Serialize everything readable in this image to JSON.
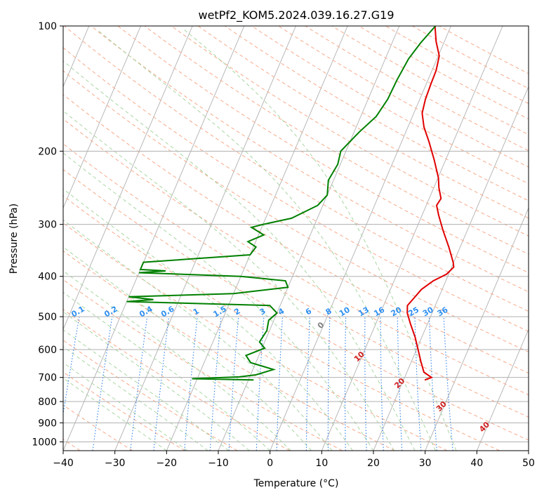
{
  "chart_data": {
    "type": "line",
    "title": "wetPf2_KOM5.2024.039.16.27.G19",
    "xlabel": "Temperature (°C)",
    "ylabel": "Pressure (hPa)",
    "xlim": [
      -40,
      50
    ],
    "ylim": [
      1050,
      100
    ],
    "y_scale": "log",
    "grid": true,
    "x_ticks": [
      -40,
      -30,
      -20,
      -10,
      0,
      10,
      20,
      30,
      40,
      50
    ],
    "y_ticks": [
      100,
      200,
      300,
      400,
      500,
      600,
      700,
      800,
      900,
      1000
    ],
    "series": [
      {
        "color": "#e00000",
        "points": [
          [
            24.1,
            710
          ],
          [
            25.2,
            700
          ],
          [
            23.3,
            680
          ],
          [
            21.8,
            640
          ],
          [
            20.3,
            600
          ],
          [
            18.7,
            560
          ],
          [
            16.7,
            520
          ],
          [
            15.2,
            490
          ],
          [
            14.6,
            470
          ],
          [
            15.3,
            450
          ],
          [
            16.0,
            430
          ],
          [
            17.6,
            410
          ],
          [
            19.6,
            395
          ],
          [
            20.4,
            380
          ],
          [
            19.9,
            370
          ],
          [
            17.8,
            340
          ],
          [
            15.3,
            310
          ],
          [
            13.2,
            285
          ],
          [
            12.0,
            270
          ],
          [
            12.3,
            260
          ],
          [
            11.0,
            245
          ],
          [
            10.1,
            232
          ],
          [
            7.8,
            210
          ],
          [
            5.3,
            190
          ],
          [
            3.1,
            175
          ],
          [
            1.6,
            162
          ],
          [
            1.1,
            150
          ],
          [
            0.9,
            138
          ],
          [
            0.8,
            128
          ],
          [
            0.2,
            118
          ],
          [
            -1.6,
            109
          ],
          [
            -3.1,
            100
          ]
        ]
      },
      {
        "color": "#008000",
        "points": [
          [
            -9.0,
            710
          ],
          [
            -21.0,
            705
          ],
          [
            -12.0,
            698
          ],
          [
            -9.0,
            690
          ],
          [
            -6.0,
            670
          ],
          [
            -11.0,
            645
          ],
          [
            -12.5,
            620
          ],
          [
            -9.5,
            595
          ],
          [
            -11.0,
            575
          ],
          [
            -10.5,
            540
          ],
          [
            -11.0,
            510
          ],
          [
            -10.0,
            490
          ],
          [
            -12.0,
            470
          ],
          [
            -40.0,
            460
          ],
          [
            -35.0,
            455
          ],
          [
            -40.0,
            448
          ],
          [
            -20.0,
            440
          ],
          [
            -10.0,
            425
          ],
          [
            -11.0,
            410
          ],
          [
            -20.0,
            400
          ],
          [
            -40.0,
            392
          ],
          [
            -35.0,
            388
          ],
          [
            -40.0,
            385
          ],
          [
            -40.0,
            370
          ],
          [
            -20.0,
            355
          ],
          [
            -19.5,
            340
          ],
          [
            -21.5,
            330
          ],
          [
            -19.0,
            318
          ],
          [
            -22.0,
            305
          ],
          [
            -20.0,
            300
          ],
          [
            -15.0,
            290
          ],
          [
            -11.0,
            270
          ],
          [
            -10.0,
            255
          ],
          [
            -11.0,
            235
          ],
          [
            -10.5,
            215
          ],
          [
            -11.0,
            200
          ],
          [
            -9.0,
            180
          ],
          [
            -7.0,
            165
          ],
          [
            -6.2,
            150
          ],
          [
            -6.0,
            135
          ],
          [
            -5.5,
            120
          ],
          [
            -4.5,
            110
          ],
          [
            -3.0,
            100
          ]
        ]
      }
    ],
    "annotations": {
      "dry_adiabats": [
        "-100",
        "-90",
        "-80",
        "-70",
        "-60",
        "-50",
        "-40",
        "-30",
        "-20",
        "-10"
      ],
      "mixing_ratios": [
        "0.1",
        "0.2",
        "0.4",
        "0.6",
        "1",
        "1.5",
        "2",
        "3",
        "4",
        "6",
        "8",
        "10",
        "13",
        "16",
        "20",
        "25",
        "30",
        "36"
      ],
      "isotherms": [
        "0",
        "10",
        "20",
        "30",
        "40"
      ]
    }
  }
}
